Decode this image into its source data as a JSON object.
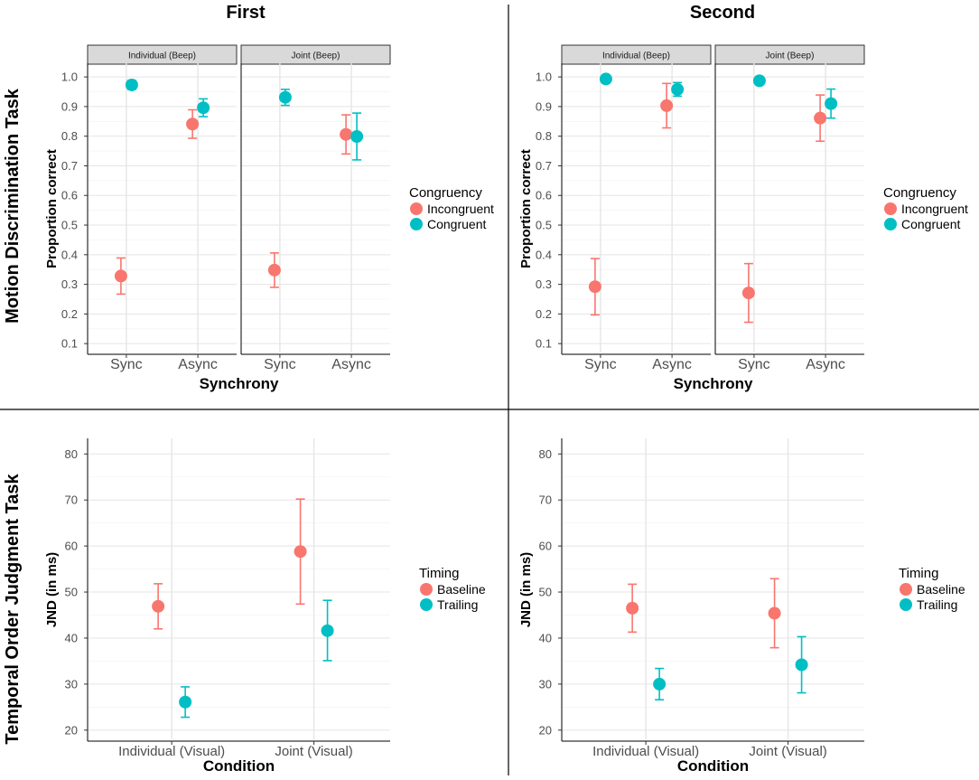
{
  "layout_titles": {
    "col1": "First",
    "col2": "Second",
    "row1": "Motion Discrimination Task",
    "row2": "Temporal Order Judgment Task"
  },
  "colors": {
    "incongruent": "#F8766D",
    "congruent": "#00BFC4",
    "grid_major": "#e5e5e5",
    "strip_bg": "#d9d9d9",
    "axis_text": "#4d4d4d"
  },
  "chart_data": [
    {
      "type": "scatter",
      "id": "motion-first",
      "xlabel": "Synchrony",
      "ylabel": "Proportion correct",
      "ylim": [
        0.07,
        1.04
      ],
      "yticks": [
        0.1,
        0.2,
        0.3,
        0.4,
        0.5,
        0.6,
        0.7,
        0.8,
        0.9,
        1.0
      ],
      "ytick_labels": [
        "0.1",
        "0.2",
        "0.3",
        "0.4",
        "0.5",
        "0.6",
        "0.7",
        "0.8",
        "0.9",
        "1.0"
      ],
      "categories": [
        "Sync",
        "Async"
      ],
      "legend_title": "Congruency",
      "legend": [
        "Incongruent",
        "Congruent"
      ],
      "facets": [
        {
          "label": "Individual (Beep)",
          "series": [
            {
              "name": "Incongruent",
              "values": [
                0.328,
                0.841
              ],
              "lower": [
                0.267,
                0.793
              ],
              "upper": [
                0.389,
                0.889
              ]
            },
            {
              "name": "Congruent",
              "values": [
                0.973,
                0.896
              ],
              "lower": [
                0.958,
                0.866
              ],
              "upper": [
                0.988,
                0.926
              ]
            }
          ]
        },
        {
          "label": "Joint (Beep)",
          "series": [
            {
              "name": "Incongruent",
              "values": [
                0.348,
                0.806
              ],
              "lower": [
                0.29,
                0.74
              ],
              "upper": [
                0.406,
                0.872
              ]
            },
            {
              "name": "Congruent",
              "values": [
                0.931,
                0.799
              ],
              "lower": [
                0.904,
                0.72
              ],
              "upper": [
                0.958,
                0.878
              ]
            }
          ]
        }
      ]
    },
    {
      "type": "scatter",
      "id": "motion-second",
      "xlabel": "Synchrony",
      "ylabel": "Proportion correct",
      "ylim": [
        0.07,
        1.04
      ],
      "yticks": [
        0.1,
        0.2,
        0.3,
        0.4,
        0.5,
        0.6,
        0.7,
        0.8,
        0.9,
        1.0
      ],
      "ytick_labels": [
        "0.1",
        "0.2",
        "0.3",
        "0.4",
        "0.5",
        "0.6",
        "0.7",
        "0.8",
        "0.9",
        "1.0"
      ],
      "categories": [
        "Sync",
        "Async"
      ],
      "legend_title": "Congruency",
      "legend": [
        "Incongruent",
        "Congruent"
      ],
      "facets": [
        {
          "label": "Individual (Beep)",
          "series": [
            {
              "name": "Incongruent",
              "values": [
                0.292,
                0.903
              ],
              "lower": [
                0.197,
                0.828
              ],
              "upper": [
                0.387,
                0.978
              ]
            },
            {
              "name": "Congruent",
              "values": [
                0.993,
                0.958
              ],
              "lower": [
                0.987,
                0.935
              ],
              "upper": [
                0.999,
                0.981
              ]
            }
          ]
        },
        {
          "label": "Joint (Beep)",
          "series": [
            {
              "name": "Incongruent",
              "values": [
                0.271,
                0.861
              ],
              "lower": [
                0.172,
                0.783
              ],
              "upper": [
                0.37,
                0.939
              ]
            },
            {
              "name": "Congruent",
              "values": [
                0.987,
                0.91
              ],
              "lower": [
                0.979,
                0.861
              ],
              "upper": [
                0.995,
                0.959
              ]
            }
          ]
        }
      ]
    },
    {
      "type": "scatter",
      "id": "toj-first",
      "xlabel": "Condition",
      "ylabel": "JND (in ms)",
      "ylim": [
        18,
        83
      ],
      "yticks": [
        20,
        30,
        40,
        50,
        60,
        70,
        80
      ],
      "ytick_labels": [
        "20",
        "30",
        "40",
        "50",
        "60",
        "70",
        "80"
      ],
      "categories": [
        "Individual (Visual)",
        "Joint (Visual)"
      ],
      "legend_title": "Timing",
      "legend": [
        "Baseline",
        "Trailing"
      ],
      "series": [
        {
          "name": "Baseline",
          "values": [
            46.9,
            58.8
          ],
          "lower": [
            42,
            47.4
          ],
          "upper": [
            51.8,
            70.2
          ]
        },
        {
          "name": "Trailing",
          "values": [
            26.1,
            41.6
          ],
          "lower": [
            22.8,
            35.1
          ],
          "upper": [
            29.4,
            48.2
          ]
        }
      ]
    },
    {
      "type": "scatter",
      "id": "toj-second",
      "xlabel": "Condition",
      "ylabel": "JND (in ms)",
      "ylim": [
        18,
        83
      ],
      "yticks": [
        20,
        30,
        40,
        50,
        60,
        70,
        80
      ],
      "ytick_labels": [
        "20",
        "30",
        "40",
        "50",
        "60",
        "70",
        "80"
      ],
      "categories": [
        "Individual (Visual)",
        "Joint (Visual)"
      ],
      "legend_title": "Timing",
      "legend": [
        "Baseline",
        "Trailing"
      ],
      "series": [
        {
          "name": "Baseline",
          "values": [
            46.5,
            45.4
          ],
          "lower": [
            41.3,
            37.9
          ],
          "upper": [
            51.7,
            52.9
          ]
        },
        {
          "name": "Trailing",
          "values": [
            30,
            34.2
          ],
          "lower": [
            26.6,
            28.1
          ],
          "upper": [
            33.4,
            40.3
          ]
        }
      ]
    }
  ]
}
